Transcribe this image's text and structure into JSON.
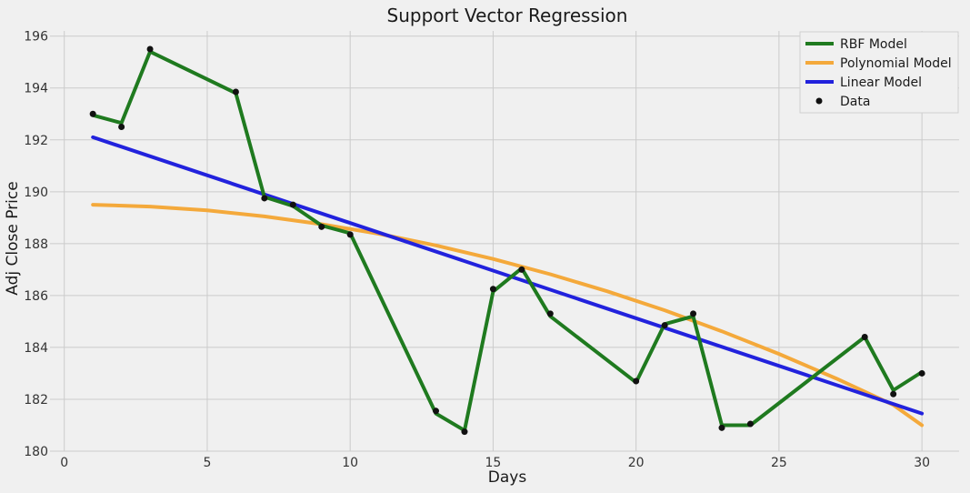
{
  "chart_data": {
    "type": "line",
    "title": "Support Vector Regression",
    "xlabel": "Days",
    "ylabel": "Adj Close Price",
    "xlim": [
      -0.5,
      31.3
    ],
    "ylim": [
      180,
      196.2
    ],
    "x_ticks": [
      0,
      5,
      10,
      15,
      20,
      25,
      30
    ],
    "y_ticks": [
      180,
      182,
      184,
      186,
      188,
      190,
      192,
      194,
      196
    ],
    "grid": true,
    "legend_position": "top-right",
    "legend": [
      "RBF Model",
      "Polynomial Model",
      "Linear Model",
      "Data"
    ],
    "colors": {
      "background": "#f0f0f0",
      "rbf": "#1f7a1f",
      "polynomial": "#f4a93b",
      "linear": "#2222dd",
      "data": "#111111"
    },
    "data_points": {
      "name": "Data",
      "x": [
        1,
        2,
        3,
        6,
        7,
        8,
        9,
        10,
        13,
        14,
        15,
        16,
        17,
        20,
        21,
        22,
        23,
        24,
        28,
        29,
        30
      ],
      "y": [
        193.0,
        192.5,
        195.5,
        193.85,
        189.75,
        189.5,
        188.65,
        188.35,
        181.55,
        180.75,
        186.25,
        187.0,
        185.3,
        182.7,
        184.85,
        185.3,
        180.9,
        181.05,
        184.4,
        182.2,
        183.0
      ]
    },
    "series": [
      {
        "name": "RBF Model",
        "x": [
          1,
          2,
          3,
          6,
          7,
          8,
          9,
          10,
          13,
          14,
          15,
          16,
          17,
          20,
          21,
          22,
          23,
          24,
          28,
          29,
          30
        ],
        "y": [
          192.95,
          192.65,
          195.4,
          193.8,
          189.8,
          189.45,
          188.7,
          188.4,
          181.45,
          180.8,
          186.15,
          187.05,
          185.2,
          182.65,
          184.9,
          185.2,
          181.0,
          181.0,
          184.4,
          182.35,
          183.05
        ]
      },
      {
        "name": "Polynomial Model",
        "x": [
          1,
          3,
          5,
          7,
          9,
          11,
          13,
          15,
          17,
          19,
          21,
          23,
          25,
          27,
          29,
          30
        ],
        "y": [
          189.5,
          189.43,
          189.28,
          189.05,
          188.75,
          188.38,
          187.93,
          187.41,
          186.82,
          186.16,
          185.43,
          184.62,
          183.75,
          182.8,
          181.78,
          181.0
        ]
      },
      {
        "name": "Linear Model",
        "x": [
          1,
          30
        ],
        "y": [
          192.1,
          181.45
        ]
      }
    ]
  }
}
